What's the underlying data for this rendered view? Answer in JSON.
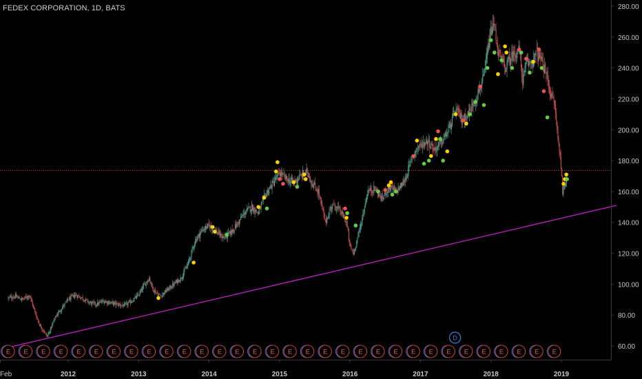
{
  "title": "FEDEX CORPORATION, 1D, BATS",
  "colors": {
    "background": "#000000",
    "axis_text": "#c8c8c8",
    "axis_line": "#3a3a3a",
    "candle_up": "#4a9a8c",
    "candle_down": "#c24b4b",
    "trendline": "#c81ec8",
    "price_line": "#e33b3b",
    "dot_red": "#f05050",
    "dot_yellow": "#ffd000",
    "dot_green": "#66cc44",
    "event_ring": "#c73c3c",
    "event_ring_blue": "#2f6fd0",
    "dividend_blue": "#3d7fd6"
  },
  "chart_data": {
    "type": "candlestick",
    "title": "FEDEX CORPORATION, 1D, BATS",
    "ylim": [
      55,
      282
    ],
    "x_range": [
      2011.15,
      2019.78
    ],
    "y_ticks": [
      "60.00",
      "80.00",
      "100.00",
      "120.00",
      "140.00",
      "160.00",
      "180.00",
      "200.00",
      "220.00",
      "240.00",
      "260.00",
      "280.00"
    ],
    "y_tick_values": [
      60,
      80,
      100,
      120,
      140,
      160,
      180,
      200,
      220,
      240,
      260,
      280
    ],
    "x_ticks": [
      "Feb",
      "2012",
      "2013",
      "2014",
      "2015",
      "2016",
      "2017",
      "2018",
      "2019"
    ],
    "x_tick_values": [
      2011.1,
      2012.0,
      2013.0,
      2014.0,
      2015.0,
      2016.0,
      2017.0,
      2018.0,
      2019.0
    ],
    "grid": false,
    "price_path": [
      [
        2011.15,
        91
      ],
      [
        2011.25,
        92
      ],
      [
        2011.35,
        90
      ],
      [
        2011.45,
        93
      ],
      [
        2011.5,
        86
      ],
      [
        2011.55,
        79
      ],
      [
        2011.6,
        73
      ],
      [
        2011.65,
        70
      ],
      [
        2011.7,
        66
      ],
      [
        2011.75,
        71
      ],
      [
        2011.82,
        79
      ],
      [
        2011.9,
        84
      ],
      [
        2012.0,
        90
      ],
      [
        2012.1,
        93
      ],
      [
        2012.2,
        91
      ],
      [
        2012.3,
        88
      ],
      [
        2012.4,
        87
      ],
      [
        2012.5,
        89
      ],
      [
        2012.6,
        88
      ],
      [
        2012.7,
        87
      ],
      [
        2012.8,
        86
      ],
      [
        2012.9,
        89
      ],
      [
        2013.0,
        93
      ],
      [
        2013.1,
        101
      ],
      [
        2013.15,
        104
      ],
      [
        2013.2,
        97
      ],
      [
        2013.3,
        92
      ],
      [
        2013.4,
        96
      ],
      [
        2013.5,
        100
      ],
      [
        2013.6,
        104
      ],
      [
        2013.7,
        113
      ],
      [
        2013.8,
        128
      ],
      [
        2013.9,
        135
      ],
      [
        2014.0,
        138
      ],
      [
        2014.1,
        134
      ],
      [
        2014.2,
        130
      ],
      [
        2014.3,
        133
      ],
      [
        2014.4,
        139
      ],
      [
        2014.5,
        146
      ],
      [
        2014.6,
        150
      ],
      [
        2014.7,
        146
      ],
      [
        2014.8,
        158
      ],
      [
        2014.9,
        165
      ],
      [
        2015.0,
        172
      ],
      [
        2015.1,
        168
      ],
      [
        2015.2,
        166
      ],
      [
        2015.3,
        170
      ],
      [
        2015.4,
        173
      ],
      [
        2015.45,
        166
      ],
      [
        2015.55,
        160
      ],
      [
        2015.65,
        140
      ],
      [
        2015.75,
        152
      ],
      [
        2015.85,
        148
      ],
      [
        2015.95,
        140
      ],
      [
        2016.0,
        124
      ],
      [
        2016.05,
        120
      ],
      [
        2016.15,
        138
      ],
      [
        2016.25,
        160
      ],
      [
        2016.35,
        162
      ],
      [
        2016.45,
        155
      ],
      [
        2016.55,
        163
      ],
      [
        2016.65,
        160
      ],
      [
        2016.75,
        165
      ],
      [
        2016.8,
        170
      ],
      [
        2016.85,
        178
      ],
      [
        2016.9,
        184
      ],
      [
        2016.95,
        188
      ],
      [
        2017.0,
        190
      ],
      [
        2017.1,
        193
      ],
      [
        2017.2,
        187
      ],
      [
        2017.3,
        192
      ],
      [
        2017.4,
        200
      ],
      [
        2017.5,
        213
      ],
      [
        2017.6,
        206
      ],
      [
        2017.7,
        212
      ],
      [
        2017.8,
        222
      ],
      [
        2017.85,
        228
      ],
      [
        2017.9,
        234
      ],
      [
        2017.95,
        250
      ],
      [
        2018.0,
        264
      ],
      [
        2018.05,
        268
      ],
      [
        2018.1,
        250
      ],
      [
        2018.2,
        240
      ],
      [
        2018.3,
        248
      ],
      [
        2018.4,
        252
      ],
      [
        2018.45,
        232
      ],
      [
        2018.5,
        242
      ],
      [
        2018.6,
        245
      ],
      [
        2018.65,
        250
      ],
      [
        2018.7,
        246
      ],
      [
        2018.75,
        240
      ],
      [
        2018.8,
        234
      ],
      [
        2018.85,
        222
      ],
      [
        2018.9,
        218
      ],
      [
        2018.95,
        195
      ],
      [
        2019.0,
        175
      ],
      [
        2019.02,
        158
      ],
      [
        2019.05,
        164
      ],
      [
        2019.08,
        172
      ]
    ],
    "horizontal_lines": [
      {
        "price": 173.5,
        "style": "dotted"
      }
    ],
    "trendline": {
      "start": [
        2011.15,
        59
      ],
      "end": [
        2019.78,
        151
      ]
    },
    "signal_dots": [
      {
        "x": 2013.28,
        "y": 91,
        "color": "yellow"
      },
      {
        "x": 2013.78,
        "y": 114,
        "color": "yellow"
      },
      {
        "x": 2014.05,
        "y": 137,
        "color": "yellow"
      },
      {
        "x": 2014.08,
        "y": 134,
        "color": "yellow"
      },
      {
        "x": 2014.25,
        "y": 132,
        "color": "green"
      },
      {
        "x": 2014.7,
        "y": 150,
        "color": "yellow"
      },
      {
        "x": 2014.78,
        "y": 156,
        "color": "yellow"
      },
      {
        "x": 2014.82,
        "y": 149,
        "color": "green"
      },
      {
        "x": 2014.95,
        "y": 173,
        "color": "yellow"
      },
      {
        "x": 2014.97,
        "y": 179,
        "color": "yellow"
      },
      {
        "x": 2015.0,
        "y": 168,
        "color": "red"
      },
      {
        "x": 2015.05,
        "y": 165,
        "color": "red"
      },
      {
        "x": 2015.2,
        "y": 166,
        "color": "yellow"
      },
      {
        "x": 2015.25,
        "y": 163,
        "color": "green"
      },
      {
        "x": 2015.35,
        "y": 171,
        "color": "yellow"
      },
      {
        "x": 2015.37,
        "y": 168,
        "color": "yellow"
      },
      {
        "x": 2015.93,
        "y": 149,
        "color": "red"
      },
      {
        "x": 2015.95,
        "y": 143,
        "color": "yellow"
      },
      {
        "x": 2015.96,
        "y": 146,
        "color": "green"
      },
      {
        "x": 2016.08,
        "y": 138,
        "color": "green"
      },
      {
        "x": 2016.4,
        "y": 160,
        "color": "green"
      },
      {
        "x": 2016.5,
        "y": 161,
        "color": "red"
      },
      {
        "x": 2016.55,
        "y": 164,
        "color": "yellow"
      },
      {
        "x": 2016.58,
        "y": 166,
        "color": "yellow"
      },
      {
        "x": 2016.6,
        "y": 158,
        "color": "green"
      },
      {
        "x": 2016.65,
        "y": 160,
        "color": "green"
      },
      {
        "x": 2016.9,
        "y": 183,
        "color": "red"
      },
      {
        "x": 2016.95,
        "y": 193,
        "color": "yellow"
      },
      {
        "x": 2017.05,
        "y": 178,
        "color": "green"
      },
      {
        "x": 2017.12,
        "y": 180,
        "color": "green"
      },
      {
        "x": 2017.15,
        "y": 183,
        "color": "yellow"
      },
      {
        "x": 2017.22,
        "y": 194,
        "color": "yellow"
      },
      {
        "x": 2017.25,
        "y": 199,
        "color": "red"
      },
      {
        "x": 2017.28,
        "y": 194,
        "color": "green"
      },
      {
        "x": 2017.32,
        "y": 180,
        "color": "green"
      },
      {
        "x": 2017.38,
        "y": 186,
        "color": "yellow"
      },
      {
        "x": 2017.5,
        "y": 210,
        "color": "yellow"
      },
      {
        "x": 2017.6,
        "y": 206,
        "color": "red"
      },
      {
        "x": 2017.65,
        "y": 204,
        "color": "yellow"
      },
      {
        "x": 2017.7,
        "y": 210,
        "color": "green"
      },
      {
        "x": 2017.78,
        "y": 218,
        "color": "green"
      },
      {
        "x": 2017.85,
        "y": 228,
        "color": "red"
      },
      {
        "x": 2017.9,
        "y": 216,
        "color": "green"
      },
      {
        "x": 2017.95,
        "y": 240,
        "color": "green"
      },
      {
        "x": 2018.0,
        "y": 258,
        "color": "green"
      },
      {
        "x": 2018.05,
        "y": 250,
        "color": "green"
      },
      {
        "x": 2018.1,
        "y": 236,
        "color": "yellow"
      },
      {
        "x": 2018.15,
        "y": 245,
        "color": "green"
      },
      {
        "x": 2018.2,
        "y": 254,
        "color": "yellow"
      },
      {
        "x": 2018.22,
        "y": 250,
        "color": "yellow"
      },
      {
        "x": 2018.3,
        "y": 240,
        "color": "green"
      },
      {
        "x": 2018.4,
        "y": 252,
        "color": "red"
      },
      {
        "x": 2018.43,
        "y": 250,
        "color": "green"
      },
      {
        "x": 2018.5,
        "y": 246,
        "color": "red"
      },
      {
        "x": 2018.55,
        "y": 237,
        "color": "green"
      },
      {
        "x": 2018.6,
        "y": 244,
        "color": "yellow"
      },
      {
        "x": 2018.68,
        "y": 252,
        "color": "red"
      },
      {
        "x": 2018.72,
        "y": 240,
        "color": "green"
      },
      {
        "x": 2018.75,
        "y": 225,
        "color": "red"
      },
      {
        "x": 2018.8,
        "y": 208,
        "color": "green"
      },
      {
        "x": 2019.03,
        "y": 165,
        "color": "yellow"
      },
      {
        "x": 2019.05,
        "y": 168,
        "color": "yellow"
      },
      {
        "x": 2019.07,
        "y": 171,
        "color": "yellow"
      },
      {
        "x": 2019.08,
        "y": 168,
        "color": "green"
      }
    ],
    "events": {
      "label": "E",
      "count": 32,
      "first_x": 2011.15,
      "spacing": 0.25,
      "dividend_label": "D",
      "dividend_x": 2017.49
    }
  }
}
